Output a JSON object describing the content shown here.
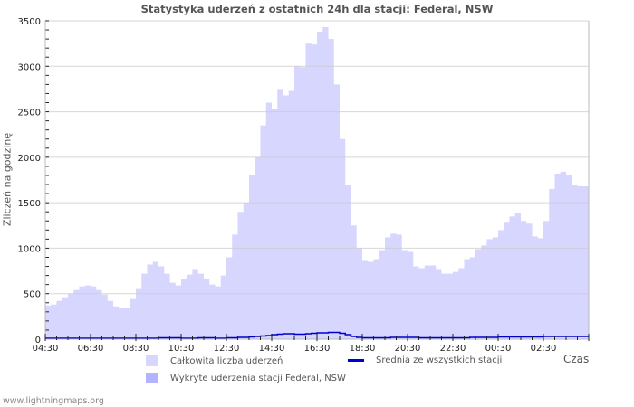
{
  "title": "Statystyka uderzeń z ostatnich 24h dla stacji: Federal, NSW",
  "ylabel": "Zliczeń na godzinę",
  "xlabel": "Czas",
  "footer": "www.lightningmaps.org",
  "colors": {
    "total_fill": "#d6d6ff",
    "station_fill": "#b3b3ff",
    "average_line": "#0000cc",
    "grid": "#cccccc",
    "axis": "#bbbbbb"
  },
  "legend": [
    {
      "label": "Całkowita liczba uderzeń",
      "type": "area",
      "color": "#d6d6ff"
    },
    {
      "label": "Wykryte uderzenia stacji Federal, NSW",
      "type": "area",
      "color": "#b3b3ff"
    },
    {
      "label": "Średnia ze wszystkich stacji",
      "type": "line",
      "color": "#0000cc"
    }
  ],
  "chart_data": {
    "type": "area",
    "title": "Statystyka uderzeń z ostatnich 24h dla stacji: Federal, NSW",
    "xlabel": "Czas",
    "ylabel": "Zliczeń na godzinę",
    "ylim": [
      0,
      3500
    ],
    "yticks": [
      0,
      500,
      1000,
      1500,
      2000,
      2500,
      3000,
      3500
    ],
    "xticks": [
      "04:30",
      "06:30",
      "08:30",
      "10:30",
      "12:30",
      "14:30",
      "16:30",
      "18:30",
      "20:30",
      "22:30",
      "00:30",
      "02:30"
    ],
    "grid": true,
    "legend_position": "bottom",
    "x": [
      "04:30",
      "04:45",
      "05:00",
      "05:15",
      "05:30",
      "05:45",
      "06:00",
      "06:15",
      "06:30",
      "06:45",
      "07:00",
      "07:15",
      "07:30",
      "07:45",
      "08:00",
      "08:15",
      "08:30",
      "08:45",
      "09:00",
      "09:15",
      "09:30",
      "09:45",
      "10:00",
      "10:15",
      "10:30",
      "10:45",
      "11:00",
      "11:15",
      "11:30",
      "11:45",
      "12:00",
      "12:15",
      "12:30",
      "12:45",
      "13:00",
      "13:15",
      "13:30",
      "13:45",
      "14:00",
      "14:15",
      "14:30",
      "14:45",
      "15:00",
      "15:15",
      "15:30",
      "15:45",
      "16:00",
      "16:15",
      "16:30",
      "16:45",
      "17:00",
      "17:15",
      "17:30",
      "17:45",
      "18:00",
      "18:15",
      "18:30",
      "18:45",
      "19:00",
      "19:15",
      "19:30",
      "19:45",
      "20:00",
      "20:15",
      "20:30",
      "20:45",
      "21:00",
      "21:15",
      "21:30",
      "21:45",
      "22:00",
      "22:15",
      "22:30",
      "22:45",
      "23:00",
      "23:15",
      "23:30",
      "23:45",
      "00:00",
      "00:15",
      "00:30",
      "00:45",
      "01:00",
      "01:15",
      "01:30",
      "01:45",
      "02:00",
      "02:15",
      "02:30",
      "02:45",
      "03:00",
      "03:15",
      "03:30",
      "03:45",
      "04:00",
      "04:15"
    ],
    "series": [
      {
        "name": "Całkowita liczba uderzeń",
        "values": [
          370,
          380,
          420,
          460,
          500,
          540,
          580,
          590,
          580,
          540,
          490,
          420,
          360,
          340,
          340,
          440,
          560,
          720,
          820,
          850,
          800,
          720,
          620,
          590,
          660,
          710,
          770,
          720,
          660,
          600,
          580,
          700,
          900,
          1150,
          1400,
          1500,
          1800,
          2000,
          2350,
          2600,
          2530,
          2750,
          2680,
          2730,
          3000,
          2990,
          3250,
          3240,
          3380,
          3430,
          3300,
          2800,
          2200,
          1700,
          1250,
          1000,
          860,
          850,
          880,
          980,
          1120,
          1160,
          1150,
          980,
          960,
          800,
          780,
          810,
          810,
          770,
          720,
          720,
          740,
          780,
          880,
          900,
          990,
          1030,
          1100,
          1120,
          1200,
          1280,
          1350,
          1390,
          1300,
          1270,
          1130,
          1110,
          1300,
          1650,
          1820,
          1840,
          1810,
          1690,
          1680,
          1680
        ]
      },
      {
        "name": "Wykryte uderzenia stacji Federal, NSW",
        "values": [
          0,
          0,
          0,
          0,
          0,
          0,
          0,
          0,
          0,
          0,
          0,
          0,
          0,
          0,
          0,
          0,
          0,
          0,
          0,
          0,
          0,
          0,
          0,
          0,
          0,
          0,
          0,
          0,
          0,
          0,
          0,
          0,
          0,
          0,
          0,
          0,
          0,
          0,
          0,
          0,
          0,
          0,
          0,
          0,
          0,
          0,
          0,
          0,
          0,
          0,
          0,
          0,
          0,
          0,
          0,
          0,
          0,
          0,
          0,
          0,
          0,
          0,
          0,
          0,
          0,
          0,
          0,
          0,
          0,
          0,
          0,
          0,
          0,
          0,
          0,
          0,
          0,
          0,
          0,
          0,
          0,
          0,
          0,
          0,
          0,
          0,
          0,
          0,
          0,
          0,
          0,
          0,
          0,
          0,
          0,
          0
        ]
      },
      {
        "name": "Średnia ze wszystkich stacji",
        "values": [
          10,
          10,
          10,
          10,
          10,
          10,
          10,
          10,
          10,
          10,
          10,
          10,
          10,
          10,
          10,
          10,
          10,
          10,
          10,
          10,
          15,
          15,
          15,
          15,
          10,
          10,
          10,
          15,
          15,
          15,
          10,
          10,
          15,
          15,
          20,
          20,
          25,
          30,
          35,
          40,
          50,
          55,
          60,
          60,
          55,
          55,
          60,
          65,
          70,
          70,
          75,
          75,
          65,
          50,
          30,
          20,
          15,
          15,
          15,
          15,
          15,
          20,
          20,
          20,
          20,
          20,
          15,
          15,
          15,
          15,
          15,
          15,
          15,
          15,
          15,
          20,
          20,
          20,
          20,
          20,
          25,
          25,
          25,
          25,
          25,
          25,
          25,
          25,
          30,
          30,
          30,
          30,
          30,
          30,
          30,
          30
        ]
      }
    ]
  }
}
